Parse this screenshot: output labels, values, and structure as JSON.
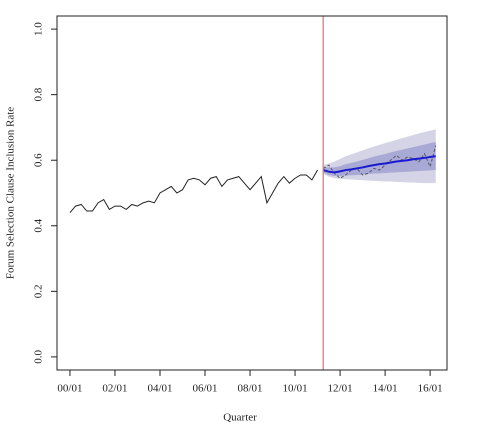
{
  "chart_data": {
    "type": "line",
    "xlabel": "Quarter",
    "ylabel": "Forum Selection Clause Inclusion Rate",
    "xlim": [
      -2.3,
      67.0
    ],
    "ylim": [
      -0.04,
      1.04
    ],
    "xticks": [
      {
        "value": 0,
        "label": "00/01"
      },
      {
        "value": 8,
        "label": "02/01"
      },
      {
        "value": 16,
        "label": "04/01"
      },
      {
        "value": 24,
        "label": "06/01"
      },
      {
        "value": 32,
        "label": "08/01"
      },
      {
        "value": 40,
        "label": "10/01"
      },
      {
        "value": 48,
        "label": "12/01"
      },
      {
        "value": 56,
        "label": "14/01"
      },
      {
        "value": 64,
        "label": "16/01"
      }
    ],
    "yticks": [
      {
        "value": 0,
        "label": "0.0"
      },
      0.2,
      0.4,
      0.6,
      0.8,
      {
        "value": 1,
        "label": "1.0"
      }
    ],
    "vline": {
      "value": 45,
      "color": "#e07a7a"
    },
    "bands": [
      {
        "color": "#d4d4e6",
        "x": [
          45,
          46,
          47,
          48,
          49,
          50,
          51,
          52,
          53,
          54,
          55,
          56,
          57,
          58,
          59,
          60,
          61,
          62,
          63,
          64,
          65
        ],
        "lower": [
          0.558,
          0.55,
          0.545,
          0.543,
          0.542,
          0.541,
          0.54,
          0.539,
          0.538,
          0.537,
          0.536,
          0.535,
          0.535,
          0.534,
          0.533,
          0.532,
          0.532,
          0.531,
          0.53,
          0.53,
          0.53
        ],
        "upper": [
          0.585,
          0.59,
          0.596,
          0.604,
          0.612,
          0.618,
          0.624,
          0.63,
          0.636,
          0.642,
          0.647,
          0.652,
          0.657,
          0.662,
          0.667,
          0.672,
          0.677,
          0.682,
          0.686,
          0.69,
          0.694
        ]
      },
      {
        "color": "#a9a9d6",
        "x": [
          45,
          46,
          47,
          48,
          49,
          50,
          51,
          52,
          53,
          54,
          55,
          56,
          57,
          58,
          59,
          60,
          61,
          62,
          63,
          64,
          65
        ],
        "lower": [
          0.562,
          0.555,
          0.552,
          0.552,
          0.553,
          0.554,
          0.555,
          0.556,
          0.558,
          0.559,
          0.56,
          0.561,
          0.562,
          0.563,
          0.564,
          0.565,
          0.566,
          0.567,
          0.568,
          0.569,
          0.57
        ],
        "upper": [
          0.578,
          0.578,
          0.578,
          0.582,
          0.588,
          0.592,
          0.596,
          0.601,
          0.606,
          0.611,
          0.615,
          0.619,
          0.624,
          0.628,
          0.632,
          0.636,
          0.64,
          0.644,
          0.648,
          0.652,
          0.656
        ]
      }
    ],
    "series": [
      {
        "color": "#222222",
        "style": "solid",
        "x": [
          0,
          1,
          2,
          3,
          4,
          5,
          6,
          7,
          8,
          9,
          10,
          11,
          12,
          13,
          14,
          15,
          16,
          17,
          18,
          19,
          20,
          21,
          22,
          23,
          24,
          25,
          26,
          27,
          28,
          29,
          30,
          31,
          32,
          33,
          34,
          35,
          36,
          37,
          38,
          39,
          40,
          41,
          42,
          43,
          44
        ],
        "values": [
          0.44,
          0.46,
          0.465,
          0.445,
          0.445,
          0.47,
          0.48,
          0.45,
          0.46,
          0.46,
          0.45,
          0.465,
          0.46,
          0.47,
          0.475,
          0.47,
          0.5,
          0.51,
          0.52,
          0.5,
          0.51,
          0.54,
          0.545,
          0.54,
          0.525,
          0.545,
          0.55,
          0.52,
          0.54,
          0.545,
          0.55,
          0.53,
          0.51,
          0.53,
          0.55,
          0.47,
          0.5,
          0.53,
          0.55,
          0.53,
          0.545,
          0.555,
          0.555,
          0.54,
          0.57
        ]
      },
      {
        "color": "#555566",
        "style": "dashed",
        "x": [
          45,
          46,
          47,
          48,
          49,
          50,
          51,
          52,
          53,
          54,
          55,
          56,
          57,
          58,
          59,
          60,
          61,
          62,
          63,
          64,
          65
        ],
        "values": [
          0.575,
          0.585,
          0.56,
          0.545,
          0.555,
          0.57,
          0.575,
          0.555,
          0.56,
          0.575,
          0.57,
          0.585,
          0.6,
          0.615,
          0.6,
          0.61,
          0.605,
          0.595,
          0.62,
          0.58,
          0.645
        ]
      },
      {
        "color": "#1a1ad0",
        "style": "thick",
        "x": [
          45,
          46,
          47,
          48,
          49,
          50,
          51,
          52,
          53,
          54,
          55,
          56,
          57,
          58,
          59,
          60,
          61,
          62,
          63,
          64,
          65
        ],
        "values": [
          0.57,
          0.565,
          0.563,
          0.566,
          0.57,
          0.572,
          0.575,
          0.578,
          0.582,
          0.585,
          0.588,
          0.59,
          0.593,
          0.596,
          0.598,
          0.6,
          0.603,
          0.605,
          0.607,
          0.61,
          0.612
        ]
      }
    ]
  }
}
